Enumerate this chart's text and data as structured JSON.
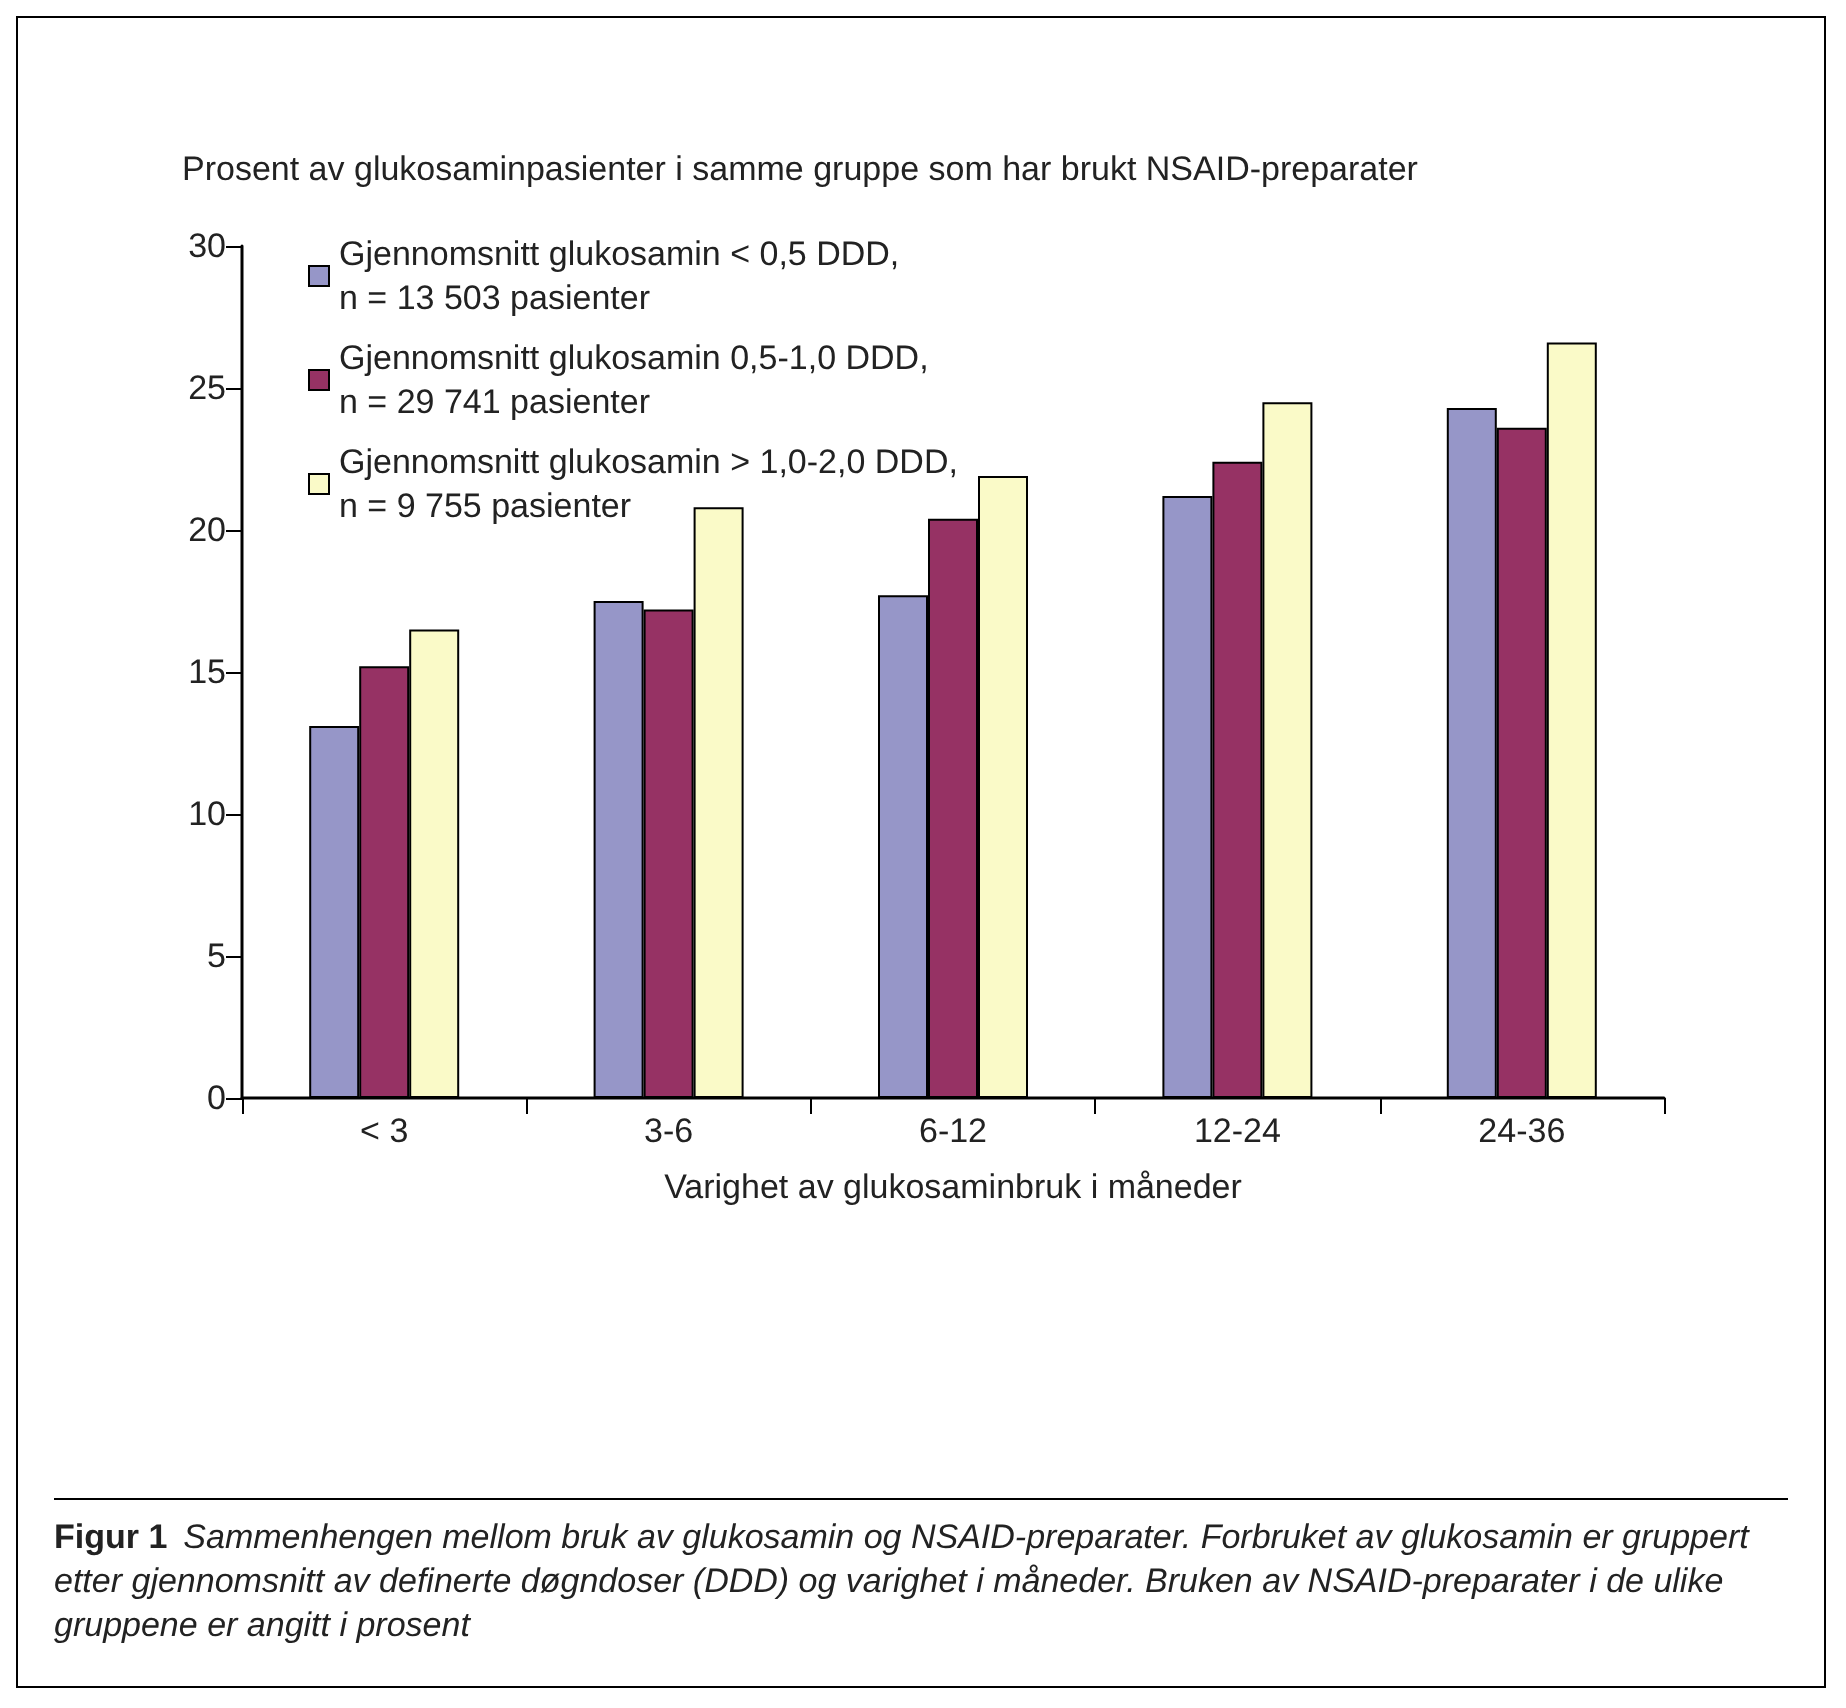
{
  "chart_data": {
    "type": "bar",
    "ylabel": "Prosent av glukosaminpasienter i samme gruppe som har brukt NSAID-preparater",
    "xlabel": "Varighet av glukosaminbruk i måneder",
    "categories": [
      "< 3",
      "3-6",
      "6-12",
      "12-24",
      "24-36"
    ],
    "series": [
      {
        "name": "Gjennomsnitt glukosamin < 0,5 DDD,\nn = 13 503 pasienter",
        "color": "#9696c8",
        "values": [
          13.1,
          17.5,
          17.7,
          21.2,
          24.3
        ]
      },
      {
        "name": "Gjennomsnitt glukosamin 0,5-1,0 DDD,\nn = 29 741 pasienter",
        "color": "#963264",
        "values": [
          15.2,
          17.2,
          20.4,
          22.4,
          23.6
        ]
      },
      {
        "name": "Gjennomsnitt glukosamin > 1,0-2,0 DDD,\nn = 9 755 pasienter",
        "color": "#fafac8",
        "values": [
          16.5,
          20.8,
          21.9,
          24.5,
          26.6
        ]
      }
    ],
    "ylim": [
      0,
      30
    ],
    "yticks": [
      0,
      5,
      10,
      15,
      20,
      25,
      30
    ],
    "grid": false,
    "legend": "top left",
    "annotations": [
      "Figur 1",
      "Sammenhengen mellom bruk av glukosamin og NSAID-preparater. Forbruket av glukosamin er gruppert etter gjennomsnitt av definerte døgndoser (DDD) og varighet i måneder. Bruken av NSAID-preparater i de ulike gruppene er angitt i prosent"
    ]
  }
}
